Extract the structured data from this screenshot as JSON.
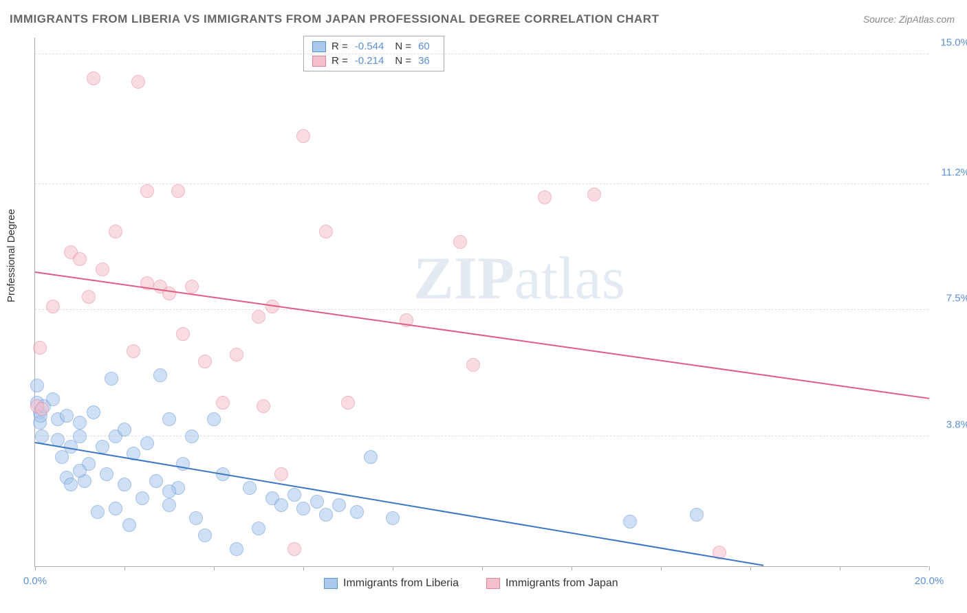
{
  "title": "IMMIGRANTS FROM LIBERIA VS IMMIGRANTS FROM JAPAN PROFESSIONAL DEGREE CORRELATION CHART",
  "source": "Source: ZipAtlas.com",
  "ylabel": "Professional Degree",
  "watermark_a": "ZIP",
  "watermark_b": "atlas",
  "chart": {
    "type": "scatter",
    "background_color": "#ffffff",
    "grid_color": "#dddddd",
    "axis_color": "#aaaaaa",
    "text_color": "#333333",
    "value_color": "#5b8fd6",
    "xlim": [
      0.0,
      20.0
    ],
    "ylim": [
      0.0,
      15.5
    ],
    "xtick_positions": [
      0.0,
      2.0,
      4.0,
      6.0,
      8.0,
      10.0,
      12.0,
      14.0,
      16.0,
      18.0,
      20.0
    ],
    "xtick_labels": {
      "0": "0.0%",
      "20": "20.0%"
    },
    "ytick_positions": [
      3.8,
      7.5,
      11.2,
      15.0
    ],
    "ytick_labels": [
      "3.8%",
      "7.5%",
      "11.2%",
      "15.0%"
    ],
    "marker_radius": 10,
    "marker_opacity": 0.55,
    "line_width": 2
  },
  "series": [
    {
      "name": "Immigrants from Liberia",
      "fill_color": "#a9c8ec",
      "stroke_color": "#5b8fd6",
      "line_color": "#3a76c4",
      "R": "-0.544",
      "N": "60",
      "trend": {
        "x1": 0.0,
        "y1": 3.6,
        "x2": 16.3,
        "y2": 0.0
      },
      "points": [
        [
          0.05,
          5.3
        ],
        [
          0.05,
          4.8
        ],
        [
          0.1,
          4.5
        ],
        [
          0.1,
          4.2
        ],
        [
          0.12,
          4.4
        ],
        [
          0.15,
          3.8
        ],
        [
          0.2,
          4.7
        ],
        [
          0.4,
          4.9
        ],
        [
          0.5,
          4.3
        ],
        [
          0.5,
          3.7
        ],
        [
          0.6,
          3.2
        ],
        [
          0.7,
          4.4
        ],
        [
          0.7,
          2.6
        ],
        [
          0.8,
          3.5
        ],
        [
          0.8,
          2.4
        ],
        [
          1.0,
          4.2
        ],
        [
          1.0,
          3.8
        ],
        [
          1.1,
          2.5
        ],
        [
          1.2,
          3.0
        ],
        [
          1.3,
          4.5
        ],
        [
          1.4,
          1.6
        ],
        [
          1.5,
          3.5
        ],
        [
          1.6,
          2.7
        ],
        [
          1.7,
          5.5
        ],
        [
          1.8,
          3.8
        ],
        [
          1.8,
          1.7
        ],
        [
          2.0,
          2.4
        ],
        [
          2.0,
          4.0
        ],
        [
          2.1,
          1.2
        ],
        [
          2.2,
          3.3
        ],
        [
          2.4,
          2.0
        ],
        [
          2.5,
          3.6
        ],
        [
          2.7,
          2.5
        ],
        [
          2.8,
          5.6
        ],
        [
          3.0,
          1.8
        ],
        [
          3.0,
          4.3
        ],
        [
          3.2,
          2.3
        ],
        [
          3.3,
          3.0
        ],
        [
          3.5,
          3.8
        ],
        [
          3.6,
          1.4
        ],
        [
          3.8,
          0.9
        ],
        [
          4.0,
          4.3
        ],
        [
          4.2,
          2.7
        ],
        [
          4.5,
          0.5
        ],
        [
          4.8,
          2.3
        ],
        [
          5.0,
          1.1
        ],
        [
          5.3,
          2.0
        ],
        [
          5.5,
          1.8
        ],
        [
          5.8,
          2.1
        ],
        [
          6.0,
          1.7
        ],
        [
          6.3,
          1.9
        ],
        [
          6.5,
          1.5
        ],
        [
          6.8,
          1.8
        ],
        [
          7.2,
          1.6
        ],
        [
          7.5,
          3.2
        ],
        [
          8.0,
          1.4
        ],
        [
          13.3,
          1.3
        ],
        [
          14.8,
          1.5
        ],
        [
          3.0,
          2.2
        ],
        [
          1.0,
          2.8
        ]
      ]
    },
    {
      "name": "Immigrants from Japan",
      "fill_color": "#f5c0cc",
      "stroke_color": "#e57f9a",
      "line_color": "#e05b82",
      "R": "-0.214",
      "N": "36",
      "trend": {
        "x1": 0.0,
        "y1": 8.6,
        "x2": 20.0,
        "y2": 4.9
      },
      "points": [
        [
          0.05,
          4.7
        ],
        [
          0.1,
          6.4
        ],
        [
          0.15,
          4.6
        ],
        [
          0.4,
          7.6
        ],
        [
          0.8,
          9.2
        ],
        [
          1.0,
          9.0
        ],
        [
          1.2,
          7.9
        ],
        [
          1.3,
          14.3
        ],
        [
          1.5,
          8.7
        ],
        [
          1.8,
          9.8
        ],
        [
          2.2,
          6.3
        ],
        [
          2.3,
          14.2
        ],
        [
          2.5,
          11.0
        ],
        [
          2.5,
          8.3
        ],
        [
          2.8,
          8.2
        ],
        [
          3.0,
          8.0
        ],
        [
          3.2,
          11.0
        ],
        [
          3.3,
          6.8
        ],
        [
          3.5,
          8.2
        ],
        [
          3.8,
          6.0
        ],
        [
          4.2,
          4.8
        ],
        [
          4.5,
          6.2
        ],
        [
          5.0,
          7.3
        ],
        [
          5.1,
          4.7
        ],
        [
          5.5,
          2.7
        ],
        [
          5.8,
          0.5
        ],
        [
          6.0,
          12.6
        ],
        [
          6.5,
          9.8
        ],
        [
          7.0,
          4.8
        ],
        [
          8.3,
          7.2
        ],
        [
          9.5,
          9.5
        ],
        [
          9.8,
          5.9
        ],
        [
          11.4,
          10.8
        ],
        [
          12.5,
          10.9
        ],
        [
          15.3,
          0.4
        ],
        [
          5.3,
          7.6
        ]
      ]
    }
  ],
  "legend_top": {
    "R_label": "R =",
    "N_label": "N ="
  },
  "legend_bottom": [
    {
      "label": "Immigrants from Liberia"
    },
    {
      "label": "Immigrants from Japan"
    }
  ]
}
